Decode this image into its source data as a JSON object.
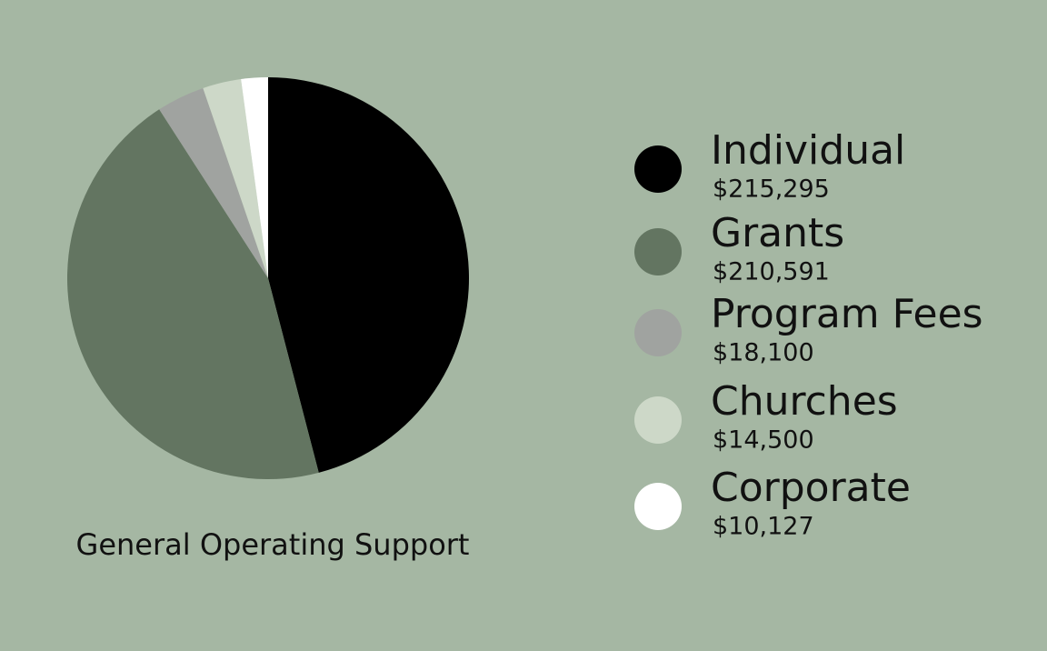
{
  "chart_data": {
    "type": "pie",
    "title": "General Operating Support",
    "categories": [
      "Individual",
      "Grants",
      "Program Fees",
      "Churches",
      "Corporate"
    ],
    "values": [
      215295,
      210591,
      18100,
      14500,
      10127
    ],
    "value_labels": [
      "$215,295",
      "$210,591",
      "$18,100",
      "$14,500",
      "$10,127"
    ],
    "colors": [
      "#000000",
      "#637561",
      "#a0a3a0",
      "#cdd8c8",
      "#ffffff"
    ]
  }
}
